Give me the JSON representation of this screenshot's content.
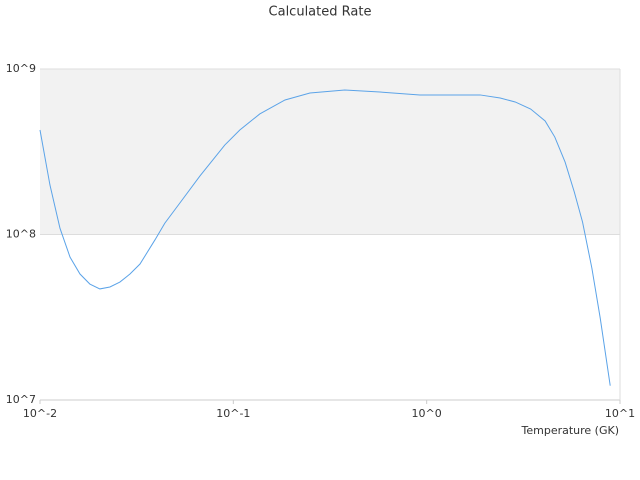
{
  "chart_data": {
    "type": "line",
    "title": "Calculated Rate",
    "x_label": "Temperature (GK)",
    "x_log": true,
    "y_log": true,
    "grid": true,
    "band_color": "#f2f2f2",
    "xlim": [
      0.01,
      10
    ],
    "ylim": [
      10000000,
      1000000000
    ],
    "xticks": [
      {
        "value": 0.01,
        "label": "10^-2"
      },
      {
        "value": 0.1,
        "label": "10^-1"
      },
      {
        "value": 1,
        "label": "10^0"
      },
      {
        "value": 10,
        "label": "10^1"
      }
    ],
    "yticks": [
      {
        "value": 10000000,
        "label": "10^7"
      },
      {
        "value": 100000000,
        "label": "10^8"
      },
      {
        "value": 1000000000,
        "label": "10^9"
      }
    ],
    "series": [
      {
        "color": "#5ba3e8",
        "x": [
          0.01,
          0.01126,
          0.01269,
          0.0143,
          0.0161,
          0.0181,
          0.0204,
          0.023,
          0.0259,
          0.0292,
          0.0329,
          0.0393,
          0.0442,
          0.0529,
          0.0672,
          0.0903,
          0.108,
          0.137,
          0.185,
          0.249,
          0.377,
          0.573,
          0.922,
          1.89,
          2.4,
          2.87,
          3.45,
          4.1,
          4.6,
          5.2,
          5.8,
          6.4,
          7.15,
          7.9,
          8.9
        ],
        "values": [
          428000000,
          199000000,
          109000000,
          73000000,
          57700000,
          50200000,
          46900000,
          48200000,
          51600000,
          57700000,
          66300000,
          92700000,
          117000000,
          155000000,
          226000000,
          347000000,
          428000000,
          535000000,
          650000000,
          716000000,
          747000000,
          726000000,
          697000000,
          697000000,
          668000000,
          632000000,
          573000000,
          485000000,
          388000000,
          274000000,
          181000000,
          119000000,
          62800000,
          31300000,
          12200000
        ]
      }
    ]
  }
}
